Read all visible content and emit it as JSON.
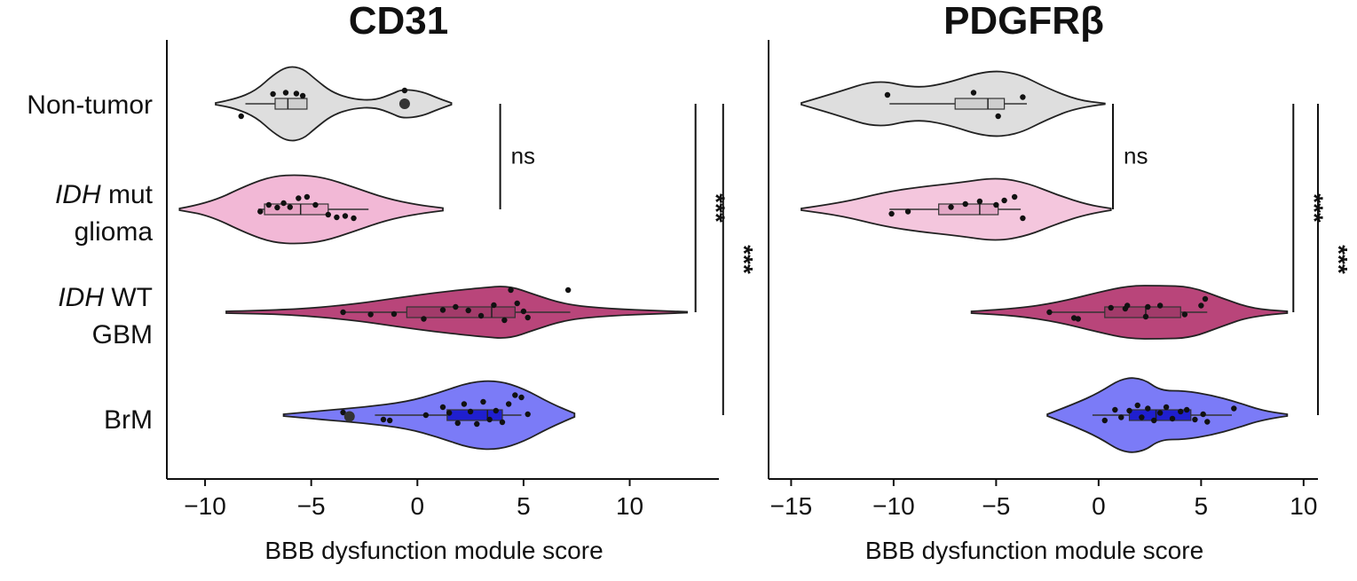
{
  "chart_data": [
    {
      "type": "violin",
      "title": "CD31",
      "xlabel": "BBB dysfunction module score",
      "ylabel": "",
      "xlim": [
        -11.8,
        14.2
      ],
      "xticks": [
        -10,
        -5,
        0,
        5,
        10
      ],
      "xtick_labels": [
        "−10",
        "−5",
        "0",
        "5",
        "10"
      ],
      "categories": [
        {
          "id": "nontumor",
          "lines": [
            {
              "text": "Non-tumor",
              "italic": false
            }
          ]
        },
        {
          "id": "idhmut",
          "lines": [
            {
              "text": "IDH",
              "italic": true,
              "rest": " mut"
            },
            {
              "text": "glioma",
              "italic": false
            }
          ]
        },
        {
          "id": "idhwt",
          "lines": [
            {
              "text": "IDH",
              "italic": true,
              "rest": " WT"
            },
            {
              "text": "GBM",
              "italic": false
            }
          ]
        },
        {
          "id": "brm",
          "lines": [
            {
              "text": "BrM",
              "italic": false
            }
          ]
        }
      ],
      "series": [
        {
          "category": "Non-tumor",
          "color": "#dedede",
          "box_color": "#cfcfcf",
          "violin": [
            [
              -9.5,
              0.02
            ],
            [
              -8.6,
              0.1
            ],
            [
              -7.6,
              0.3
            ],
            [
              -6.8,
              0.65
            ],
            [
              -6.1,
              0.85
            ],
            [
              -5.4,
              0.8
            ],
            [
              -4.8,
              0.55
            ],
            [
              -4.0,
              0.25
            ],
            [
              -3.0,
              0.1
            ],
            [
              -2.0,
              0.08
            ],
            [
              -1.2,
              0.22
            ],
            [
              -0.7,
              0.33
            ],
            [
              0.2,
              0.28
            ],
            [
              1.0,
              0.12
            ],
            [
              1.6,
              0.02
            ]
          ],
          "box": {
            "q1": -6.7,
            "median": -6.1,
            "q3": -5.2,
            "whisker_low": -8.1,
            "whisker_high": -5.2
          },
          "points": [
            [
              -8.3,
              -0.28
            ],
            [
              -6.8,
              0.22
            ],
            [
              -6.2,
              0.25
            ],
            [
              -5.7,
              0.23
            ],
            [
              -5.4,
              0.18
            ],
            [
              -0.6,
              0.3
            ],
            [
              -0.6,
              0.02
            ]
          ],
          "outliers": [
            [
              -0.6,
              0.0
            ]
          ]
        },
        {
          "category": "IDH mut glioma",
          "color": "#f2b8d6",
          "box_color": "#e6a3c4",
          "violin": [
            [
              -11.2,
              0.02
            ],
            [
              -9.8,
              0.14
            ],
            [
              -8.0,
              0.55
            ],
            [
              -6.8,
              0.75
            ],
            [
              -5.6,
              0.78
            ],
            [
              -4.4,
              0.72
            ],
            [
              -3.0,
              0.5
            ],
            [
              -1.5,
              0.25
            ],
            [
              0.0,
              0.1
            ],
            [
              1.2,
              0.03
            ]
          ],
          "box": {
            "q1": -7.2,
            "median": -5.5,
            "q3": -4.2,
            "whisker_low": -7.5,
            "whisker_high": -2.3
          },
          "points": [
            [
              -7.4,
              -0.05
            ],
            [
              -7.0,
              0.1
            ],
            [
              -6.6,
              0.04
            ],
            [
              -6.3,
              0.14
            ],
            [
              -6.0,
              0.05
            ],
            [
              -5.6,
              0.25
            ],
            [
              -5.2,
              0.28
            ],
            [
              -4.8,
              0.1
            ],
            [
              -4.2,
              -0.12
            ],
            [
              -3.8,
              -0.18
            ],
            [
              -3.4,
              -0.15
            ],
            [
              -3.0,
              -0.2
            ]
          ],
          "outliers": []
        },
        {
          "category": "IDH WT GBM",
          "color": "#b9457a",
          "box_color": "#a23b6a",
          "violin": [
            [
              -9.0,
              0.02
            ],
            [
              -6.0,
              0.05
            ],
            [
              -3.0,
              0.18
            ],
            [
              -1.0,
              0.32
            ],
            [
              1.0,
              0.45
            ],
            [
              3.0,
              0.55
            ],
            [
              4.3,
              0.6
            ],
            [
              5.5,
              0.4
            ],
            [
              7.0,
              0.17
            ],
            [
              9.0,
              0.08
            ],
            [
              11.5,
              0.03
            ],
            [
              12.7,
              0.01
            ]
          ],
          "box": {
            "q1": -0.5,
            "median": 3.5,
            "q3": 4.6,
            "whisker_low": -3.5,
            "whisker_high": 7.2
          },
          "points": [
            [
              -3.5,
              0.0
            ],
            [
              -2.2,
              -0.05
            ],
            [
              -1.1,
              -0.04
            ],
            [
              0.3,
              -0.15
            ],
            [
              1.2,
              0.05
            ],
            [
              1.8,
              0.12
            ],
            [
              2.4,
              0.04
            ],
            [
              3.0,
              -0.08
            ],
            [
              3.6,
              0.16
            ],
            [
              4.1,
              -0.18
            ],
            [
              4.4,
              0.5
            ],
            [
              4.7,
              0.2
            ],
            [
              5.0,
              0.02
            ],
            [
              5.2,
              -0.12
            ],
            [
              7.1,
              0.5
            ]
          ],
          "outliers": []
        },
        {
          "category": "BrM",
          "color": "#7b7bf7",
          "box_color": "#1f1fcf",
          "violin": [
            [
              -6.3,
              0.02
            ],
            [
              -4.5,
              0.1
            ],
            [
              -2.5,
              0.18
            ],
            [
              -0.5,
              0.3
            ],
            [
              1.0,
              0.5
            ],
            [
              2.5,
              0.75
            ],
            [
              3.8,
              0.78
            ],
            [
              5.0,
              0.6
            ],
            [
              6.3,
              0.26
            ],
            [
              7.4,
              0.04
            ]
          ],
          "box": {
            "q1": 1.4,
            "median": 3.3,
            "q3": 4.0,
            "whisker_low": -2.0,
            "whisker_high": 4.9
          },
          "points": [
            [
              -3.5,
              0.06
            ],
            [
              -3.3,
              -0.05
            ],
            [
              -1.6,
              -0.1
            ],
            [
              -1.3,
              -0.12
            ],
            [
              0.4,
              0.0
            ],
            [
              1.2,
              0.18
            ],
            [
              1.5,
              0.05
            ],
            [
              1.9,
              -0.18
            ],
            [
              2.2,
              0.25
            ],
            [
              2.5,
              0.08
            ],
            [
              2.8,
              -0.2
            ],
            [
              3.1,
              0.3
            ],
            [
              3.4,
              -0.1
            ],
            [
              3.7,
              0.1
            ],
            [
              4.0,
              -0.16
            ],
            [
              4.3,
              0.25
            ],
            [
              4.6,
              0.45
            ],
            [
              4.9,
              0.4
            ],
            [
              5.2,
              0.02
            ]
          ],
          "outliers": [
            [
              -3.2,
              -0.03
            ]
          ]
        }
      ],
      "comparisons": [
        {
          "label": "ns",
          "from": "Non-tumor",
          "to": "IDH mut glioma",
          "x": 3.9,
          "label_side": "right"
        },
        {
          "label": "***",
          "from": "Non-tumor",
          "to": "IDH WT GBM",
          "x": 13.1,
          "label_side": "right"
        },
        {
          "label": "***",
          "from": "Non-tumor",
          "to": "BrM",
          "x": 14.4,
          "label_side": "right"
        }
      ],
      "grid": false,
      "legend": "none"
    },
    {
      "type": "violin",
      "title": "PDGFRβ",
      "xlabel": "BBB dysfunction module score",
      "ylabel": "",
      "xlim": [
        -16.1,
        10.7
      ],
      "xticks": [
        -15,
        -10,
        -5,
        0,
        5,
        10
      ],
      "xtick_labels": [
        "−15",
        "−10",
        "−5",
        "0",
        "5",
        "10"
      ],
      "categories": [
        {
          "id": "nontumor",
          "lines": []
        },
        {
          "id": "idhmut",
          "lines": []
        },
        {
          "id": "idhwt",
          "lines": []
        },
        {
          "id": "brm",
          "lines": []
        }
      ],
      "series": [
        {
          "category": "Non-tumor",
          "color": "#dedede",
          "box_color": "#cfcfcf",
          "violin": [
            [
              -14.5,
              0.02
            ],
            [
              -12.8,
              0.25
            ],
            [
              -10.8,
              0.55
            ],
            [
              -9.0,
              0.35
            ],
            [
              -7.5,
              0.45
            ],
            [
              -5.5,
              0.75
            ],
            [
              -4.0,
              0.7
            ],
            [
              -2.5,
              0.35
            ],
            [
              -1.0,
              0.08
            ],
            [
              0.3,
              0.01
            ]
          ],
          "box": {
            "q1": -7.0,
            "median": -5.4,
            "q3": -4.6,
            "whisker_low": -10.2,
            "whisker_high": -3.5
          },
          "points": [
            [
              -10.3,
              0.2
            ],
            [
              -6.1,
              0.25
            ],
            [
              -4.9,
              -0.28
            ],
            [
              -3.7,
              0.15
            ]
          ],
          "outliers": []
        },
        {
          "category": "IDH mut glioma",
          "color": "#f4c6dd",
          "box_color": "#e3a8c6",
          "violin": [
            [
              -14.5,
              0.02
            ],
            [
              -12.5,
              0.15
            ],
            [
              -10.5,
              0.38
            ],
            [
              -8.8,
              0.5
            ],
            [
              -6.8,
              0.6
            ],
            [
              -5.0,
              0.72
            ],
            [
              -3.5,
              0.6
            ],
            [
              -2.0,
              0.32
            ],
            [
              -0.5,
              0.1
            ],
            [
              0.6,
              0.02
            ]
          ],
          "box": {
            "q1": -7.8,
            "median": -5.8,
            "q3": -4.9,
            "whisker_low": -10.2,
            "whisker_high": -3.8
          },
          "points": [
            [
              -10.1,
              -0.1
            ],
            [
              -9.3,
              -0.05
            ],
            [
              -7.2,
              0.05
            ],
            [
              -6.5,
              0.12
            ],
            [
              -5.8,
              0.18
            ],
            [
              -5.0,
              0.1
            ],
            [
              -4.6,
              0.2
            ],
            [
              -4.1,
              0.28
            ],
            [
              -3.7,
              -0.2
            ]
          ],
          "outliers": []
        },
        {
          "category": "IDH WT GBM",
          "color": "#b9457a",
          "box_color": "#a23b6a",
          "violin": [
            [
              -6.2,
              0.02
            ],
            [
              -4.0,
              0.08
            ],
            [
              -2.0,
              0.22
            ],
            [
              0.0,
              0.45
            ],
            [
              1.5,
              0.6
            ],
            [
              3.0,
              0.6
            ],
            [
              4.5,
              0.58
            ],
            [
              6.0,
              0.32
            ],
            [
              7.5,
              0.08
            ],
            [
              9.2,
              0.02
            ]
          ],
          "box": {
            "q1": 0.3,
            "median": 2.3,
            "q3": 4.0,
            "whisker_low": -2.5,
            "whisker_high": 5.3
          },
          "points": [
            [
              -2.4,
              0.0
            ],
            [
              -1.2,
              -0.13
            ],
            [
              -1.0,
              -0.15
            ],
            [
              0.6,
              0.1
            ],
            [
              1.3,
              0.08
            ],
            [
              1.4,
              0.15
            ],
            [
              2.3,
              -0.1
            ],
            [
              2.4,
              0.12
            ],
            [
              3.0,
              0.15
            ],
            [
              4.2,
              -0.05
            ],
            [
              5.0,
              0.15
            ],
            [
              5.2,
              0.3
            ]
          ],
          "outliers": []
        },
        {
          "category": "BrM",
          "color": "#7b7bf7",
          "box_color": "#1f1fcf",
          "violin": [
            [
              -2.5,
              0.02
            ],
            [
              -1.2,
              0.25
            ],
            [
              0.0,
              0.5
            ],
            [
              1.2,
              0.85
            ],
            [
              2.2,
              0.82
            ],
            [
              3.0,
              0.55
            ],
            [
              4.2,
              0.55
            ],
            [
              5.5,
              0.45
            ],
            [
              6.7,
              0.3
            ],
            [
              8.0,
              0.1
            ],
            [
              9.2,
              0.02
            ]
          ],
          "box": {
            "q1": 1.5,
            "median": 2.8,
            "q3": 4.5,
            "whisker_low": -0.3,
            "whisker_high": 6.5
          },
          "points": [
            [
              0.3,
              -0.12
            ],
            [
              0.8,
              0.12
            ],
            [
              1.1,
              -0.05
            ],
            [
              1.5,
              0.1
            ],
            [
              1.9,
              0.22
            ],
            [
              2.1,
              -0.05
            ],
            [
              2.4,
              0.15
            ],
            [
              2.7,
              -0.12
            ],
            [
              3.0,
              0.05
            ],
            [
              3.3,
              0.18
            ],
            [
              3.6,
              -0.08
            ],
            [
              4.0,
              0.08
            ],
            [
              4.3,
              0.12
            ],
            [
              4.7,
              -0.1
            ],
            [
              5.1,
              0.02
            ],
            [
              5.3,
              -0.15
            ],
            [
              6.6,
              0.15
            ]
          ],
          "outliers": []
        }
      ],
      "comparisons": [
        {
          "label": "ns",
          "from": "Non-tumor",
          "to": "IDH mut glioma",
          "x": 0.7,
          "label_side": "right"
        },
        {
          "label": "***",
          "from": "Non-tumor",
          "to": "IDH WT GBM",
          "x": 9.5,
          "label_side": "right"
        },
        {
          "label": "***",
          "from": "Non-tumor",
          "to": "BrM",
          "x": 10.7,
          "label_side": "right"
        }
      ],
      "grid": false,
      "legend": "none"
    }
  ]
}
